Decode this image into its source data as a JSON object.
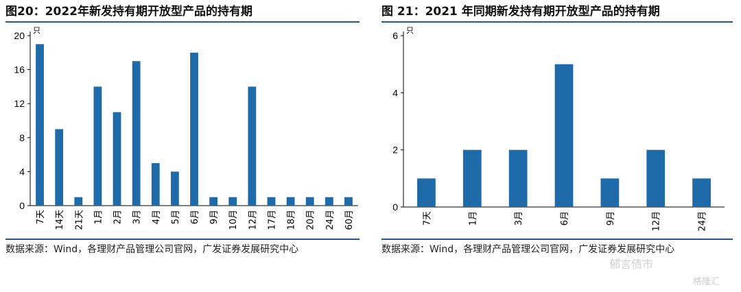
{
  "chart_data": [
    {
      "type": "bar",
      "title": "图20：2022年新发持有期开放型产品的持有期",
      "unit_label": "只",
      "categories": [
        "7天",
        "14天",
        "21天",
        "1月",
        "2月",
        "3月",
        "4月",
        "5月",
        "6月",
        "9月",
        "10月",
        "12月",
        "17月",
        "18月",
        "20月",
        "24月",
        "60月"
      ],
      "values": [
        19,
        9,
        1,
        14,
        11,
        17,
        5,
        4,
        18,
        1,
        1,
        14,
        1,
        1,
        1,
        1,
        1
      ],
      "yticks": [
        0,
        4,
        8,
        12,
        16,
        20
      ],
      "ylim": [
        0,
        20
      ],
      "bar_color": "#1f6aa8",
      "source": "数据来源：Wind，各理财产品管理公司官网，广发证券发展研究中心"
    },
    {
      "type": "bar",
      "title": "图 21：2021 年同期新发持有期开放型产品的持有期",
      "unit_label": "只",
      "categories": [
        "7天",
        "1月",
        "3月",
        "6月",
        "9月",
        "12月",
        "24月"
      ],
      "values": [
        1,
        2,
        2,
        5,
        1,
        2,
        1
      ],
      "yticks": [
        0,
        2,
        4,
        6
      ],
      "ylim": [
        0,
        6
      ],
      "bar_color": "#1f6aa8",
      "source": "数据来源：Wind，各理财产品管理公司官网，广发证券发展研究中心"
    }
  ],
  "watermarks": {
    "wechat": "郁言债市",
    "brand": "格隆汇"
  }
}
